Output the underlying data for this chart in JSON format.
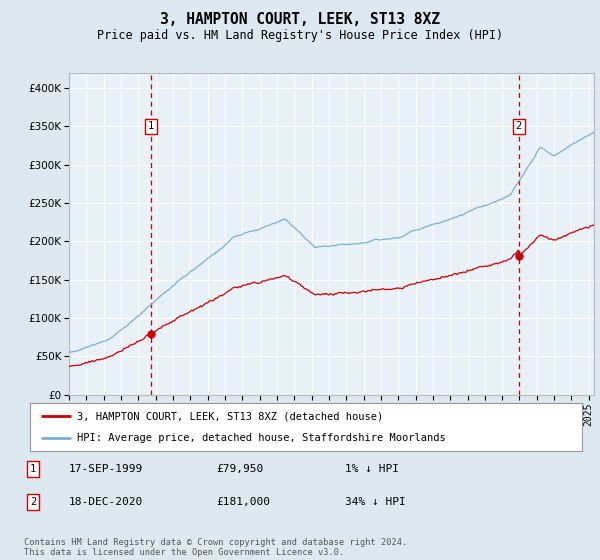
{
  "title": "3, HAMPTON COURT, LEEK, ST13 8XZ",
  "subtitle": "Price paid vs. HM Land Registry's House Price Index (HPI)",
  "legend_line1": "3, HAMPTON COURT, LEEK, ST13 8XZ (detached house)",
  "legend_line2": "HPI: Average price, detached house, Staffordshire Moorlands",
  "annotation1_label": "1",
  "annotation1_date": "17-SEP-1999",
  "annotation1_price": "£79,950",
  "annotation1_hpi": "1% ↓ HPI",
  "annotation2_label": "2",
  "annotation2_date": "18-DEC-2020",
  "annotation2_price": "£181,000",
  "annotation2_hpi": "34% ↓ HPI",
  "footer": "Contains HM Land Registry data © Crown copyright and database right 2024.\nThis data is licensed under the Open Government Licence v3.0.",
  "sale1_year": 1999.72,
  "sale1_price": 79950,
  "sale2_year": 2020.96,
  "sale2_price": 181000,
  "hpi_color": "#7bafd4",
  "price_color": "#cc0000",
  "bg_color": "#dde8f0",
  "plot_bg": "#e8f0f8",
  "grid_color": "#ffffff",
  "ylim": [
    0,
    420000
  ],
  "xlim_start": 1995.3,
  "xlim_end": 2025.3
}
